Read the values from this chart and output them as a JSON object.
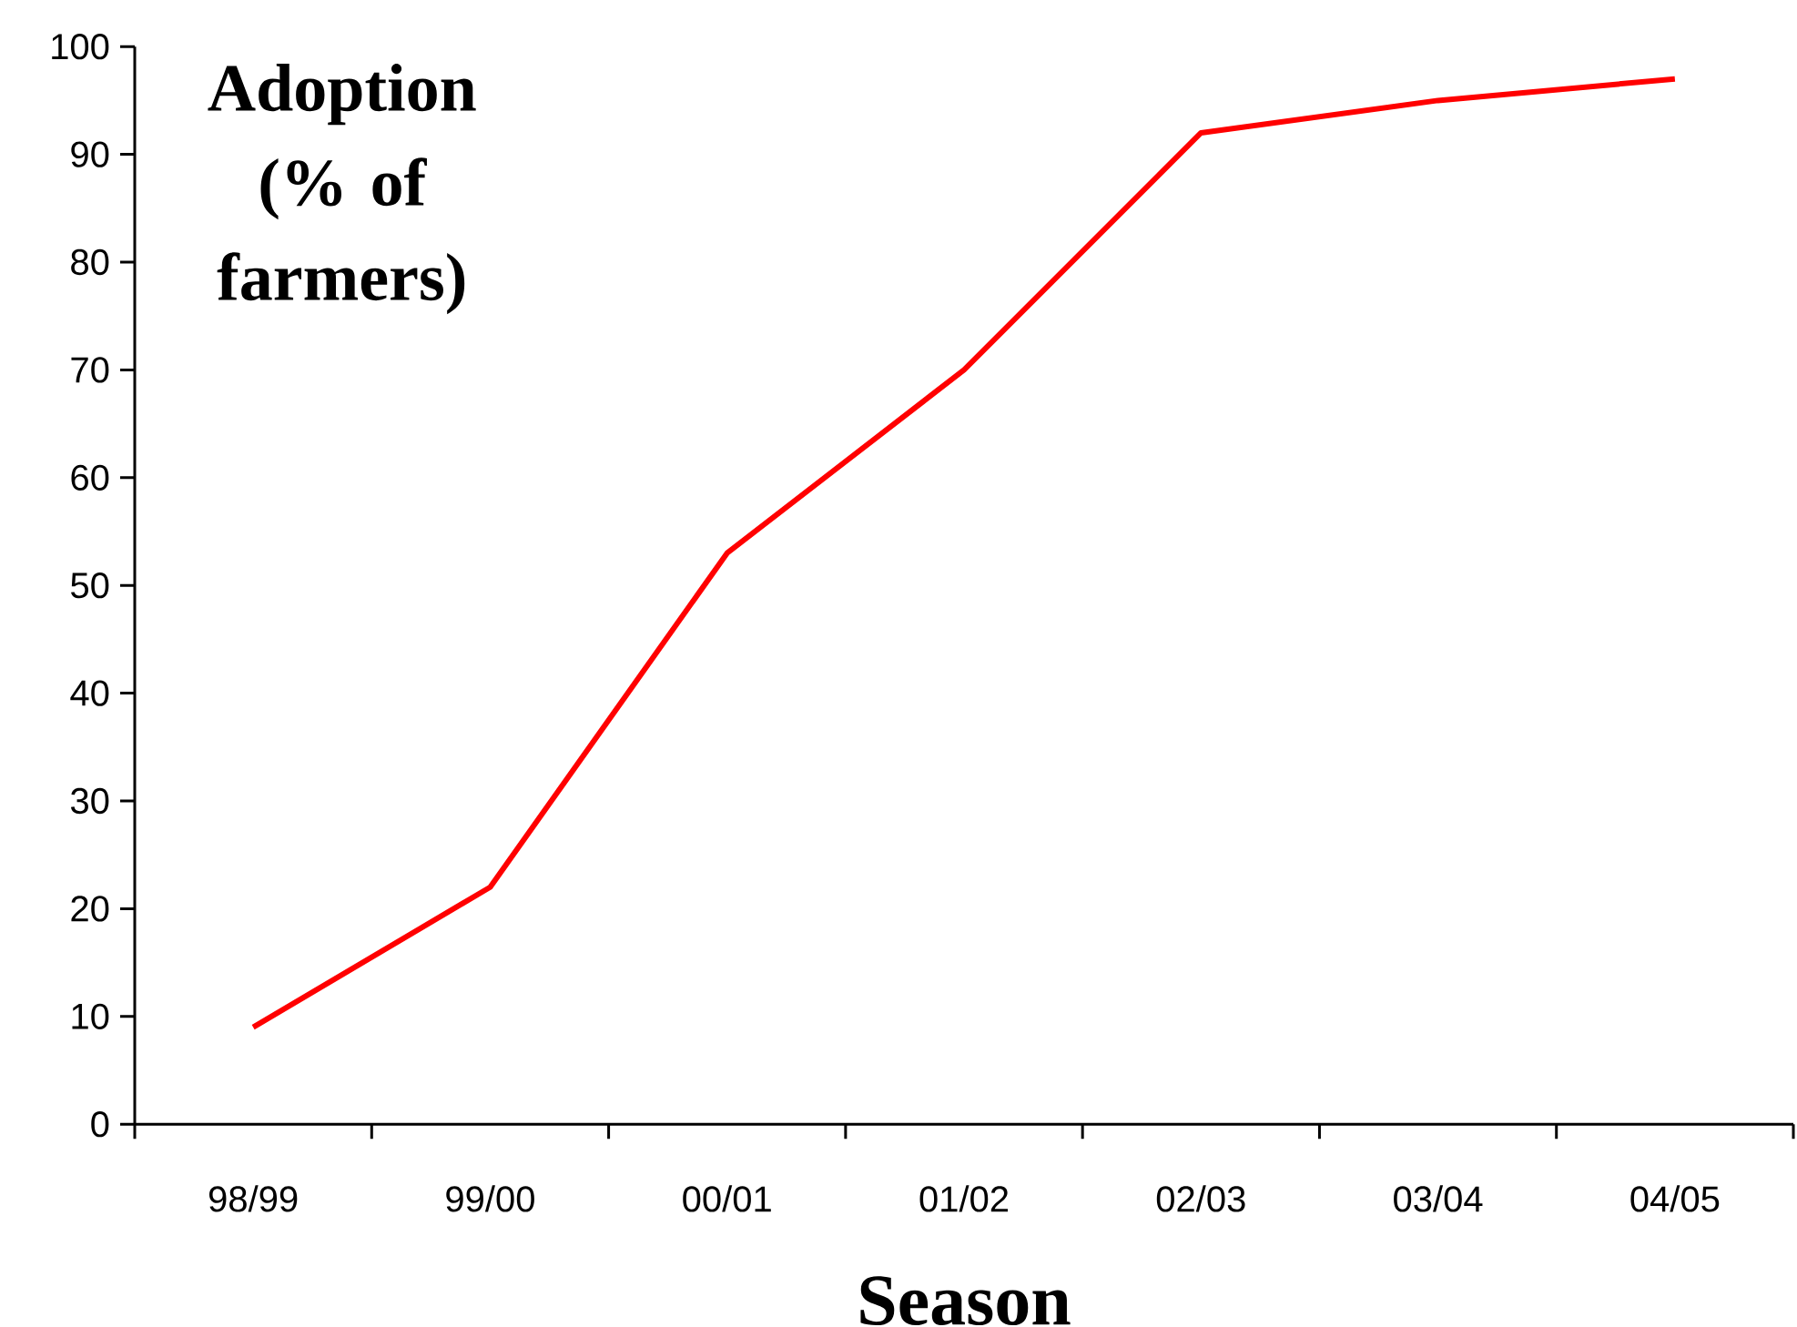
{
  "chart_data": {
    "type": "line",
    "xlabel": "Season",
    "ylabel": "Adoption (% of farmers)",
    "categories": [
      "98/99",
      "99/00",
      "00/01",
      "01/02",
      "02/03",
      "03/04",
      "04/05"
    ],
    "series": [
      {
        "color": "#ff0000",
        "values": [
          9,
          22,
          53,
          70,
          92,
          95,
          97
        ]
      }
    ],
    "ylim": [
      0,
      100
    ],
    "yticks": [
      0,
      10,
      20,
      30,
      40,
      50,
      60,
      70,
      80,
      90,
      100
    ],
    "line_style": "solid"
  }
}
